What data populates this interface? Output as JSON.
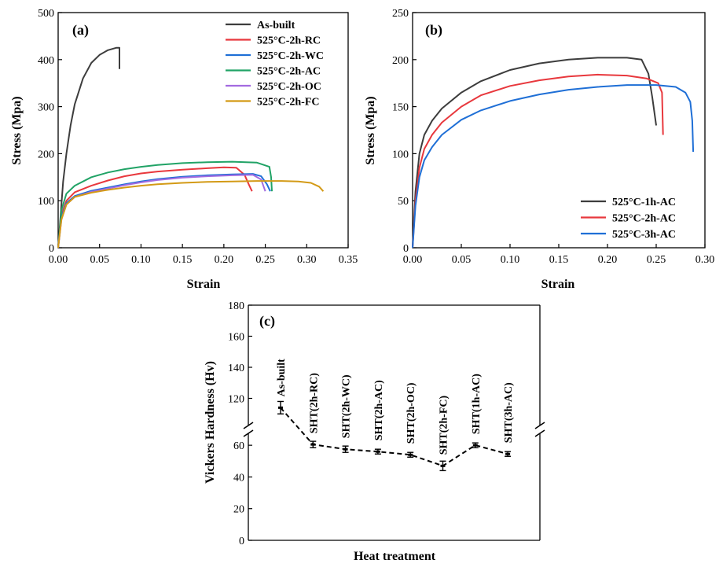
{
  "chart_data": [
    {
      "panel": "(a)",
      "type": "line",
      "xlabel": "Strain",
      "ylabel": "Stress (Mpa)",
      "xlim": [
        0,
        0.35
      ],
      "ylim": [
        0,
        500
      ],
      "xticks": [
        0.0,
        0.05,
        0.1,
        0.15,
        0.2,
        0.25,
        0.3,
        0.35
      ],
      "xtick_labels": [
        "0.00",
        "0.05",
        "0.10",
        "0.15",
        "0.20",
        "0.25",
        "0.30",
        "0.35"
      ],
      "yticks": [
        0,
        100,
        200,
        300,
        400,
        500
      ],
      "ytick_labels": [
        "0",
        "100",
        "200",
        "300",
        "400",
        "500"
      ],
      "legend_position": "top-right",
      "series": [
        {
          "name": "As-built",
          "color": "#3d3d3d",
          "x": [
            0,
            0.003,
            0.006,
            0.01,
            0.015,
            0.02,
            0.03,
            0.04,
            0.05,
            0.06,
            0.07,
            0.074,
            0.074
          ],
          "y": [
            0,
            70,
            140,
            200,
            260,
            305,
            360,
            393,
            410,
            420,
            425,
            425,
            380
          ]
        },
        {
          "name": "525°C-2h-RC",
          "color": "#e8383d",
          "x": [
            0,
            0.004,
            0.01,
            0.02,
            0.04,
            0.06,
            0.08,
            0.1,
            0.12,
            0.15,
            0.18,
            0.2,
            0.215,
            0.225,
            0.23,
            0.234
          ],
          "y": [
            0,
            70,
            100,
            118,
            132,
            143,
            152,
            158,
            162,
            166,
            169,
            171,
            170,
            155,
            135,
            120
          ]
        },
        {
          "name": "525°C-2h-WC",
          "color": "#1f6fd6",
          "x": [
            0,
            0.004,
            0.01,
            0.02,
            0.04,
            0.06,
            0.08,
            0.1,
            0.12,
            0.15,
            0.18,
            0.21,
            0.235,
            0.245,
            0.252,
            0.256
          ],
          "y": [
            0,
            65,
            95,
            110,
            121,
            128,
            135,
            141,
            146,
            151,
            154,
            156,
            157,
            152,
            135,
            120
          ]
        },
        {
          "name": "525°C-2h-AC",
          "color": "#21a366",
          "x": [
            0,
            0.004,
            0.01,
            0.02,
            0.04,
            0.06,
            0.08,
            0.1,
            0.12,
            0.15,
            0.18,
            0.21,
            0.24,
            0.255,
            0.257,
            0.258
          ],
          "y": [
            0,
            80,
            115,
            132,
            150,
            160,
            167,
            172,
            176,
            180,
            182,
            183,
            181,
            172,
            150,
            120
          ]
        },
        {
          "name": "525°C-2h-OC",
          "color": "#a36be0",
          "x": [
            0,
            0.004,
            0.01,
            0.02,
            0.04,
            0.06,
            0.08,
            0.1,
            0.12,
            0.15,
            0.18,
            0.21,
            0.235,
            0.245,
            0.25
          ],
          "y": [
            0,
            60,
            92,
            108,
            119,
            126,
            133,
            139,
            144,
            149,
            152,
            154,
            155,
            145,
            120
          ]
        },
        {
          "name": "525°C-2h-FC",
          "color": "#d39a16",
          "x": [
            0,
            0.004,
            0.01,
            0.02,
            0.04,
            0.06,
            0.08,
            0.1,
            0.12,
            0.15,
            0.18,
            0.21,
            0.24,
            0.27,
            0.29,
            0.305,
            0.315,
            0.32
          ],
          "y": [
            0,
            60,
            92,
            108,
            117,
            123,
            128,
            132,
            135,
            138,
            140,
            141,
            142,
            142,
            141,
            138,
            130,
            120
          ]
        }
      ]
    },
    {
      "panel": "(b)",
      "type": "line",
      "xlabel": "Strain",
      "ylabel": "Stress (Mpa)",
      "xlim": [
        0,
        0.3
      ],
      "ylim": [
        0,
        250
      ],
      "xticks": [
        0.0,
        0.05,
        0.1,
        0.15,
        0.2,
        0.25,
        0.3
      ],
      "xtick_labels": [
        "0.00",
        "0.05",
        "0.10",
        "0.15",
        "0.20",
        "0.25",
        "0.30"
      ],
      "yticks": [
        0,
        50,
        100,
        150,
        200,
        250
      ],
      "ytick_labels": [
        "0",
        "50",
        "100",
        "150",
        "200",
        "250"
      ],
      "legend_position": "bottom-right",
      "series": [
        {
          "name": "525°C-1h-AC",
          "color": "#3d3d3d",
          "x": [
            0,
            0.003,
            0.007,
            0.012,
            0.02,
            0.03,
            0.05,
            0.07,
            0.1,
            0.13,
            0.16,
            0.19,
            0.22,
            0.235,
            0.242,
            0.246,
            0.25
          ],
          "y": [
            0,
            60,
            100,
            120,
            135,
            148,
            165,
            177,
            189,
            196,
            200,
            202,
            202,
            200,
            185,
            160,
            130
          ]
        },
        {
          "name": "525°C-2h-AC",
          "color": "#e8383d",
          "x": [
            0,
            0.003,
            0.007,
            0.012,
            0.02,
            0.03,
            0.05,
            0.07,
            0.1,
            0.13,
            0.16,
            0.19,
            0.22,
            0.24,
            0.252,
            0.256,
            0.257
          ],
          "y": [
            0,
            50,
            85,
            105,
            120,
            133,
            150,
            162,
            172,
            178,
            182,
            184,
            183,
            180,
            175,
            165,
            120
          ]
        },
        {
          "name": "525°C-3h-AC",
          "color": "#1f6fd6",
          "x": [
            0,
            0.003,
            0.007,
            0.012,
            0.02,
            0.03,
            0.05,
            0.07,
            0.1,
            0.13,
            0.16,
            0.19,
            0.22,
            0.25,
            0.27,
            0.28,
            0.285,
            0.287,
            0.288
          ],
          "y": [
            0,
            45,
            75,
            93,
            107,
            120,
            136,
            146,
            156,
            163,
            168,
            171,
            173,
            173,
            171,
            165,
            155,
            135,
            102
          ]
        }
      ]
    },
    {
      "panel": "(c)",
      "type": "line",
      "xlabel": "Heat treatment",
      "ylabel": "Vickers Hardness (Hv)",
      "axis_break": true,
      "ylim_lower": [
        0,
        70
      ],
      "ylim_upper": [
        100,
        180
      ],
      "yticks_lower": [
        0,
        20,
        40,
        60
      ],
      "ytick_labels_lower": [
        "0",
        "20",
        "40",
        "60"
      ],
      "yticks_upper": [
        120,
        140,
        160,
        180
      ],
      "ytick_labels_upper": [
        "120",
        "140",
        "160",
        "180"
      ],
      "categories": [
        "As-built",
        "SHT(2h-RC)",
        "SHT(2h-WC)",
        "SHT(2h-AC)",
        "SHT(2h-OC)",
        "SHT(2h-FC)",
        "SHT(1h-AC)",
        "SHT(3h-AC)"
      ],
      "values": [
        114,
        60.5,
        57.5,
        56,
        54,
        47,
        60,
        54.5
      ],
      "errors": [
        4,
        2,
        2,
        1.5,
        1.5,
        3,
        1.5,
        1.5
      ],
      "line_style": "dashed",
      "color": "#000000"
    }
  ]
}
